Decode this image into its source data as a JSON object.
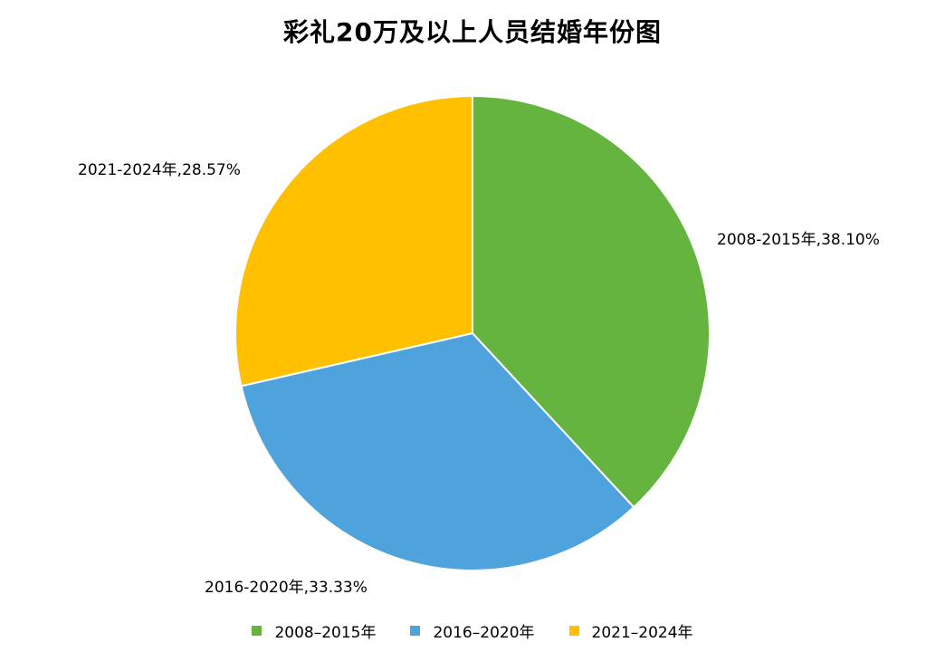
{
  "chart_data": {
    "type": "pie",
    "title": "彩礼20万及以上人员结婚年份图",
    "categories": [
      "2008-2015年",
      "2016-2020年",
      "2021-2024年"
    ],
    "values": [
      38.1,
      33.33,
      28.57
    ],
    "unit": "%",
    "data_labels": [
      "2008-2015年,38.10%",
      "2016-2020年,33.33%",
      "2021-2024年,28.57%"
    ],
    "colors": [
      "#66b440",
      "#4fa3dc",
      "#ffc000"
    ],
    "legend_labels": [
      "2008–2015年",
      "2016–2020年",
      "2021–2024年"
    ],
    "legend_position": "bottom",
    "start_angle": "12 o'clock",
    "direction": "clockwise"
  }
}
